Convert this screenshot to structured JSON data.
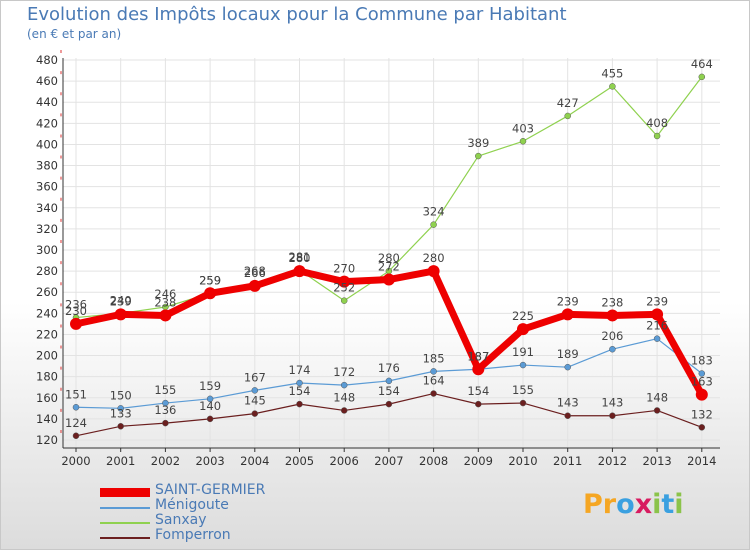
{
  "header": {
    "title": "Evolution des Impôts locaux pour la Commune par Habitant",
    "subtitle": "(en € et par an)"
  },
  "chart_data": {
    "type": "line",
    "title": "Evolution des Impôts locaux pour la Commune par Habitant",
    "subtitle": "(en € et par an)",
    "xlabel": "",
    "ylabel": "",
    "x": [
      "2000",
      "2001",
      "2002",
      "2003",
      "2004",
      "2005",
      "2006",
      "2007",
      "2008",
      "2009",
      "2010",
      "2011",
      "2012",
      "2013",
      "2014"
    ],
    "ylim": [
      120,
      480
    ],
    "yticks": [
      120,
      140,
      160,
      180,
      200,
      220,
      240,
      260,
      280,
      300,
      320,
      340,
      360,
      380,
      400,
      420,
      440,
      460,
      480
    ],
    "series": [
      {
        "name": "SAINT-GERMIER",
        "color": "#ee0000",
        "values": [
          230,
          239,
          238,
          259,
          266,
          280,
          270,
          272,
          280,
          187,
          225,
          239,
          238,
          239,
          163
        ]
      },
      {
        "name": "Ménigoute",
        "color": "#5b9bd5",
        "values": [
          151,
          150,
          155,
          159,
          167,
          174,
          172,
          176,
          185,
          187,
          191,
          189,
          206,
          216,
          183
        ]
      },
      {
        "name": "Sanxay",
        "color": "#8fd14f",
        "values": [
          236,
          240,
          246,
          259,
          268,
          281,
          252,
          280,
          324,
          389,
          403,
          427,
          455,
          408,
          464
        ]
      },
      {
        "name": "Fomperron",
        "color": "#6b1f1f",
        "values": [
          124,
          133,
          136,
          140,
          145,
          154,
          148,
          154,
          164,
          154,
          155,
          143,
          143,
          148,
          132
        ]
      }
    ]
  },
  "legend": [
    {
      "label": "SAINT-GERMIER",
      "color": "#ee0000",
      "thickness": "thick"
    },
    {
      "label": "Ménigoute",
      "color": "#5b9bd5",
      "thickness": "thin"
    },
    {
      "label": "Sanxay",
      "color": "#8fd14f",
      "thickness": "thin"
    },
    {
      "label": "Fomperron",
      "color": "#6b1f1f",
      "thickness": "thin"
    }
  ],
  "logo": {
    "letters": [
      "P",
      "r",
      "o",
      "x",
      "i",
      "t",
      "i"
    ],
    "colors": [
      "#f5a623",
      "#f5a623",
      "#3aa0e0",
      "#d81b60",
      "#8bc34a",
      "#3aa0e0",
      "#8bc34a"
    ]
  }
}
